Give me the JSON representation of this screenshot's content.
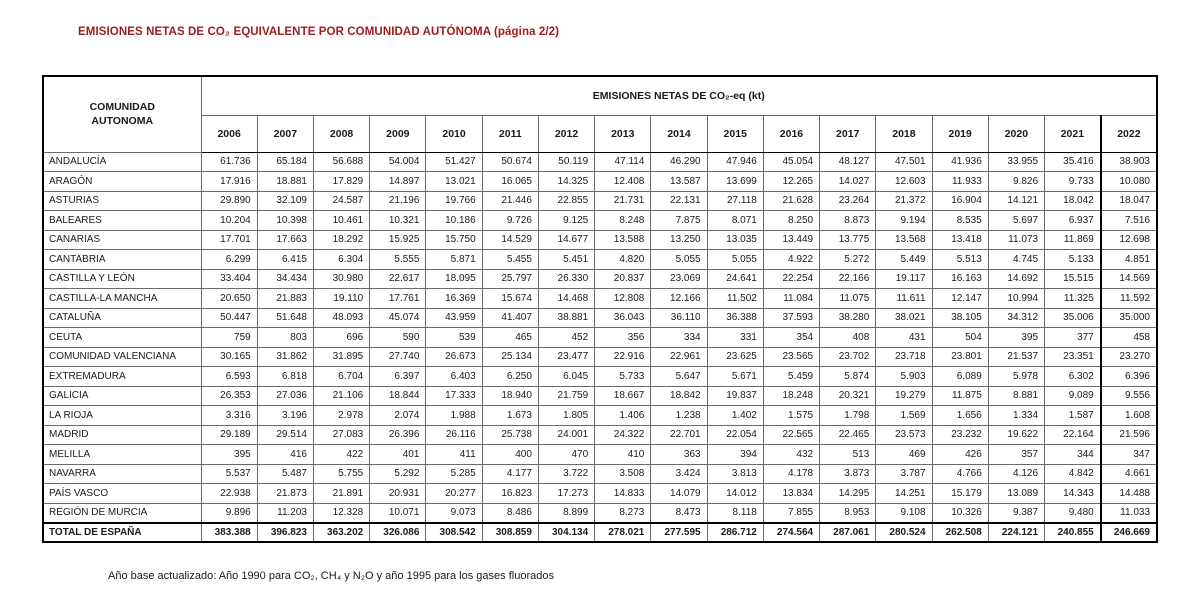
{
  "page": {
    "title": "EMISIONES NETAS DE CO₂ EQUIVALENTE POR COMUNIDAD AUTÓNOMA (página 2/2)",
    "footnote": "Año base actualizado: Año 1990 para CO₂, CH₄ y N₂O y año 1995 para los gases fluorados"
  },
  "colors": {
    "title_red": "#9E1B1B",
    "border_dark": "#000000",
    "border_light": "#8a8a8a",
    "text": "#1a1a1a"
  },
  "table": {
    "corner_header_line1": "COMUNIDAD",
    "corner_header_line2": "AUTONOMA",
    "group_header": "EMISIONES NETAS DE CO₂-eq (kt)",
    "years": [
      "2006",
      "2007",
      "2008",
      "2009",
      "2010",
      "2011",
      "2012",
      "2013",
      "2014",
      "2015",
      "2016",
      "2017",
      "2018",
      "2019",
      "2020",
      "2021",
      "2022"
    ],
    "rows": [
      {
        "name": "ANDALUCÍA",
        "values": [
          "61.736",
          "65.184",
          "56.688",
          "54.004",
          "51.427",
          "50.674",
          "50.119",
          "47.114",
          "46.290",
          "47.946",
          "45.054",
          "48.127",
          "47.501",
          "41.936",
          "33.955",
          "35.416",
          "38.903"
        ]
      },
      {
        "name": "ARAGÓN",
        "values": [
          "17.916",
          "18.881",
          "17.829",
          "14.897",
          "13.021",
          "16.065",
          "14.325",
          "12.408",
          "13.587",
          "13.699",
          "12.265",
          "14.027",
          "12.603",
          "11.933",
          "9.826",
          "9.733",
          "10.080"
        ]
      },
      {
        "name": "ASTURIAS",
        "values": [
          "29.890",
          "32.109",
          "24.587",
          "21.196",
          "19.766",
          "21.446",
          "22.855",
          "21.731",
          "22.131",
          "27.118",
          "21.628",
          "23.264",
          "21.372",
          "16.904",
          "14.121",
          "18.042",
          "18.047"
        ]
      },
      {
        "name": "BALEARES",
        "values": [
          "10.204",
          "10.398",
          "10.461",
          "10.321",
          "10.186",
          "9.726",
          "9.125",
          "8.248",
          "7.875",
          "8.071",
          "8.250",
          "8.873",
          "9.194",
          "8.535",
          "5.697",
          "6.937",
          "7.516"
        ]
      },
      {
        "name": "CANARIAS",
        "values": [
          "17.701",
          "17.663",
          "18.292",
          "15.925",
          "15.750",
          "14.529",
          "14.677",
          "13.588",
          "13.250",
          "13.035",
          "13.449",
          "13.775",
          "13.568",
          "13.418",
          "11.073",
          "11.869",
          "12.698"
        ]
      },
      {
        "name": "CANTABRIA",
        "values": [
          "6.299",
          "6.415",
          "6.304",
          "5.555",
          "5.871",
          "5.455",
          "5.451",
          "4.820",
          "5.055",
          "5.055",
          "4.922",
          "5.272",
          "5.449",
          "5.513",
          "4.745",
          "5.133",
          "4.851"
        ]
      },
      {
        "name": "CASTILLA Y LEÓN",
        "values": [
          "33.404",
          "34.434",
          "30.980",
          "22.617",
          "18.095",
          "25.797",
          "26.330",
          "20.837",
          "23.069",
          "24.641",
          "22.254",
          "22.166",
          "19.117",
          "16.163",
          "14.692",
          "15.515",
          "14.569"
        ]
      },
      {
        "name": "CASTILLA-LA MANCHA",
        "values": [
          "20.650",
          "21.883",
          "19.110",
          "17.761",
          "16.369",
          "15.674",
          "14.468",
          "12.808",
          "12.166",
          "11.502",
          "11.084",
          "11.075",
          "11.611",
          "12.147",
          "10.994",
          "11.325",
          "11.592"
        ]
      },
      {
        "name": "CATALUÑA",
        "values": [
          "50.447",
          "51.648",
          "48.093",
          "45.074",
          "43.959",
          "41.407",
          "38.881",
          "36.043",
          "36.110",
          "36.388",
          "37.593",
          "38.280",
          "38.021",
          "38.105",
          "34.312",
          "35.006",
          "35.000"
        ]
      },
      {
        "name": "CEUTA",
        "values": [
          "759",
          "803",
          "696",
          "590",
          "539",
          "465",
          "452",
          "356",
          "334",
          "331",
          "354",
          "408",
          "431",
          "504",
          "395",
          "377",
          "458"
        ]
      },
      {
        "name": "COMUNIDAD VALENCIANA",
        "values": [
          "30.165",
          "31.862",
          "31.895",
          "27.740",
          "26.673",
          "25.134",
          "23.477",
          "22.916",
          "22.961",
          "23.625",
          "23.565",
          "23.702",
          "23.718",
          "23.801",
          "21.537",
          "23.351",
          "23.270"
        ]
      },
      {
        "name": "EXTREMADURA",
        "values": [
          "6.593",
          "6.818",
          "6.704",
          "6.397",
          "6.403",
          "6.250",
          "6.045",
          "5.733",
          "5.647",
          "5.671",
          "5.459",
          "5.874",
          "5.903",
          "6.089",
          "5.978",
          "6.302",
          "6.396"
        ]
      },
      {
        "name": "GALICIA",
        "values": [
          "26.353",
          "27.036",
          "21.106",
          "18.844",
          "17.333",
          "18.940",
          "21.759",
          "18.667",
          "18.842",
          "19.837",
          "18.248",
          "20.321",
          "19.279",
          "11.875",
          "8.881",
          "9.089",
          "9.556"
        ]
      },
      {
        "name": "LA RIOJA",
        "values": [
          "3.316",
          "3.196",
          "2.978",
          "2.074",
          "1.988",
          "1.673",
          "1.805",
          "1.406",
          "1.238",
          "1.402",
          "1.575",
          "1.798",
          "1.569",
          "1.656",
          "1.334",
          "1.587",
          "1.608"
        ]
      },
      {
        "name": "MADRID",
        "values": [
          "29.189",
          "29.514",
          "27.083",
          "26.396",
          "26.116",
          "25.738",
          "24.001",
          "24.322",
          "22.701",
          "22.054",
          "22.565",
          "22.465",
          "23.573",
          "23.232",
          "19.622",
          "22.164",
          "21.596"
        ]
      },
      {
        "name": "MELILLA",
        "values": [
          "395",
          "416",
          "422",
          "401",
          "411",
          "400",
          "470",
          "410",
          "363",
          "394",
          "432",
          "513",
          "469",
          "426",
          "357",
          "344",
          "347"
        ]
      },
      {
        "name": "NAVARRA",
        "values": [
          "5.537",
          "5.487",
          "5.755",
          "5.292",
          "5.285",
          "4.177",
          "3.722",
          "3.508",
          "3.424",
          "3.813",
          "4.178",
          "3.873",
          "3.787",
          "4.766",
          "4.126",
          "4.842",
          "4.661"
        ]
      },
      {
        "name": "PAÍS VASCO",
        "values": [
          "22.938",
          "21.873",
          "21.891",
          "20.931",
          "20.277",
          "16.823",
          "17.273",
          "14.833",
          "14.079",
          "14.012",
          "13.834",
          "14.295",
          "14.251",
          "15.179",
          "13.089",
          "14.343",
          "14.488"
        ]
      },
      {
        "name": "REGIÓN DE MURCIA",
        "values": [
          "9.896",
          "11.203",
          "12.328",
          "10.071",
          "9.073",
          "8.486",
          "8.899",
          "8.273",
          "8.473",
          "8.118",
          "7.855",
          "8.953",
          "9.108",
          "10.326",
          "9.387",
          "9.480",
          "11.033"
        ]
      }
    ],
    "total": {
      "name": "TOTAL DE ESPAÑA",
      "values": [
        "383.388",
        "396.823",
        "363.202",
        "326.086",
        "308.542",
        "308.859",
        "304.134",
        "278.021",
        "277.595",
        "286.712",
        "274.564",
        "287.061",
        "280.524",
        "262.508",
        "224.121",
        "240.855",
        "246.669"
      ]
    }
  }
}
